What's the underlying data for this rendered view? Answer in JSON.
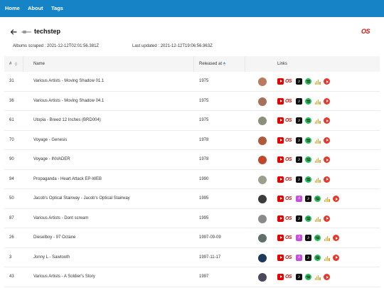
{
  "nav": {
    "home": "Home",
    "about": "About",
    "tags": "Tags"
  },
  "header": {
    "title": "techstep",
    "lastfm_logo": "last.fm-icon",
    "back_icon": "back-arrow-icon"
  },
  "meta": {
    "scraped_label": "Albums scraped :",
    "scraped_value": "2021-12-12T02:01:56.381Z",
    "updated_label": "Last updated :",
    "updated_value": "2021-12-12T19:06:56.963Z"
  },
  "table": {
    "headers": {
      "rank": "#",
      "name": "Name",
      "released": "Released at",
      "links": "Links"
    },
    "rows": [
      {
        "rank": "31",
        "name": "Various Artists - Moving Shadow 01.1",
        "released": "1975",
        "thumb": "#b97a5e",
        "links": [
          "youtube",
          "lastfm",
          "applemusic",
          "spotify",
          "deezer",
          "ytmusic"
        ]
      },
      {
        "rank": "36",
        "name": "Various Artists - Moving Shadow 04.1",
        "released": "1975",
        "thumb": "#a8705a",
        "links": [
          "youtube",
          "lastfm",
          "applemusic",
          "spotify",
          "deezer",
          "ytmusic"
        ]
      },
      {
        "rank": "61",
        "name": "Utopia - Breed 12 Inches (BRD004)",
        "released": "1975",
        "thumb": "#8c8f7a",
        "links": [
          "youtube",
          "lastfm",
          "applemusic",
          "spotify",
          "deezer",
          "ytmusic"
        ]
      },
      {
        "rank": "70",
        "name": "Voyage - Genesis",
        "released": "1978",
        "thumb": "#b0593a",
        "links": [
          "youtube",
          "lastfm",
          "applemusic",
          "spotify",
          "deezer",
          "ytmusic"
        ]
      },
      {
        "rank": "90",
        "name": "Voyage - INVADER",
        "released": "1978",
        "thumb": "#c2462a",
        "links": [
          "youtube",
          "lastfm",
          "applemusic",
          "spotify",
          "deezer",
          "ytmusic"
        ]
      },
      {
        "rank": "94",
        "name": "Propaganda - Heart Attack EP-WEB",
        "released": "1990",
        "thumb": "#9aa08c",
        "links": [
          "youtube",
          "lastfm",
          "applemusic",
          "spotify",
          "deezer",
          "ytmusic"
        ]
      },
      {
        "rank": "50",
        "name": "Jacob's Optical Stairway - Jacob's Optical Stairway",
        "released": "1995",
        "thumb": "#3c3c3c",
        "links": [
          "youtube",
          "lastfm",
          "itunes",
          "applemusic",
          "spotify",
          "deezer",
          "ytmusic"
        ]
      },
      {
        "rank": "87",
        "name": "Various Artists - Dont scream",
        "released": "1995",
        "thumb": "#8a8a8a",
        "links": [
          "youtube",
          "lastfm",
          "applemusic",
          "spotify",
          "deezer",
          "ytmusic"
        ]
      },
      {
        "rank": "26",
        "name": "Dieselboy - 97 Octane",
        "released": "1997-09-09",
        "thumb": "#5f6f6a",
        "links": [
          "youtube",
          "lastfm",
          "itunes",
          "applemusic",
          "spotify",
          "deezer",
          "ytmusic"
        ]
      },
      {
        "rank": "3",
        "name": "Jonny L - Sawtooth",
        "released": "1997-11-17",
        "thumb": "#1c3a5c",
        "links": [
          "youtube",
          "lastfm",
          "itunes",
          "applemusic",
          "spotify",
          "deezer",
          "ytmusic"
        ]
      },
      {
        "rank": "43",
        "name": "Various Artists - A Soldier's Story",
        "released": "1997",
        "thumb": "#4a4a5a",
        "links": [
          "youtube",
          "lastfm",
          "applemusic",
          "spotify",
          "deezer",
          "ytmusic"
        ]
      }
    ]
  },
  "colors": {
    "navbar": "#1583c6",
    "lastfm": "#d51007",
    "youtube": "#e60000",
    "spotify": "#1db954",
    "itunes": "#c64fdc",
    "deezer": "#f0a020"
  }
}
